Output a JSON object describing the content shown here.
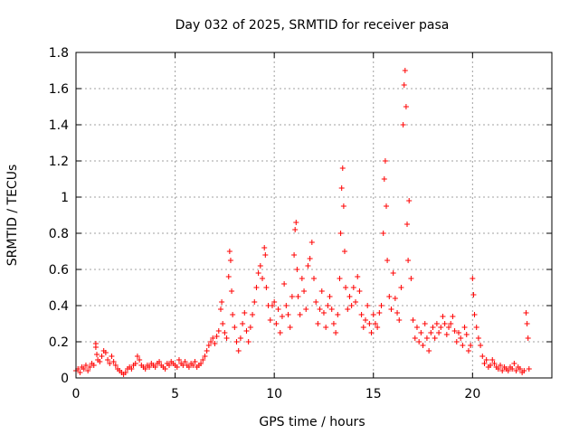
{
  "chart_data": {
    "type": "scatter",
    "title": "Day 032 of 2025, SRMTID for receiver pasa",
    "xlabel": "GPS time / hours",
    "ylabel": "SRMTID / TECUs",
    "xlim": [
      0,
      24
    ],
    "ylim": [
      0,
      1.8
    ],
    "xticks": [
      0,
      5,
      10,
      15,
      20
    ],
    "yticks": [
      0,
      0.2,
      0.4,
      0.6,
      0.8,
      1,
      1.2,
      1.4,
      1.6,
      1.8
    ],
    "xtick_labels": [
      "0",
      "5",
      "10",
      "15",
      "20"
    ],
    "ytick_labels": [
      "0",
      "0.2",
      "0.4",
      "0.6",
      "0.8",
      "1",
      "1.2",
      "1.4",
      "1.6",
      "1.8"
    ],
    "grid": true,
    "marker": "plus",
    "color": "#ff0000",
    "series": [
      {
        "name": "SRMTID",
        "points": [
          [
            0.0,
            0.04
          ],
          [
            0.1,
            0.05
          ],
          [
            0.2,
            0.03
          ],
          [
            0.3,
            0.06
          ],
          [
            0.4,
            0.05
          ],
          [
            0.5,
            0.07
          ],
          [
            0.6,
            0.04
          ],
          [
            0.7,
            0.06
          ],
          [
            0.8,
            0.08
          ],
          [
            0.9,
            0.07
          ],
          [
            1.0,
            0.19
          ],
          [
            1.0,
            0.17
          ],
          [
            1.05,
            0.13
          ],
          [
            1.1,
            0.1
          ],
          [
            1.2,
            0.09
          ],
          [
            1.3,
            0.12
          ],
          [
            1.4,
            0.15
          ],
          [
            1.5,
            0.14
          ],
          [
            1.6,
            0.1
          ],
          [
            1.7,
            0.08
          ],
          [
            1.8,
            0.12
          ],
          [
            1.9,
            0.09
          ],
          [
            2.0,
            0.07
          ],
          [
            2.1,
            0.05
          ],
          [
            2.2,
            0.04
          ],
          [
            2.3,
            0.03
          ],
          [
            2.4,
            0.02
          ],
          [
            2.5,
            0.03
          ],
          [
            2.6,
            0.05
          ],
          [
            2.7,
            0.06
          ],
          [
            2.8,
            0.05
          ],
          [
            2.9,
            0.07
          ],
          [
            3.0,
            0.08
          ],
          [
            3.1,
            0.12
          ],
          [
            3.2,
            0.1
          ],
          [
            3.3,
            0.07
          ],
          [
            3.4,
            0.06
          ],
          [
            3.5,
            0.05
          ],
          [
            3.6,
            0.07
          ],
          [
            3.7,
            0.06
          ],
          [
            3.8,
            0.08
          ],
          [
            3.9,
            0.07
          ],
          [
            4.0,
            0.06
          ],
          [
            4.1,
            0.08
          ],
          [
            4.2,
            0.09
          ],
          [
            4.3,
            0.07
          ],
          [
            4.4,
            0.06
          ],
          [
            4.5,
            0.05
          ],
          [
            4.6,
            0.08
          ],
          [
            4.7,
            0.07
          ],
          [
            4.8,
            0.09
          ],
          [
            4.9,
            0.08
          ],
          [
            5.0,
            0.07
          ],
          [
            5.1,
            0.06
          ],
          [
            5.2,
            0.1
          ],
          [
            5.3,
            0.08
          ],
          [
            5.4,
            0.07
          ],
          [
            5.5,
            0.09
          ],
          [
            5.6,
            0.07
          ],
          [
            5.7,
            0.06
          ],
          [
            5.8,
            0.08
          ],
          [
            5.9,
            0.07
          ],
          [
            6.0,
            0.09
          ],
          [
            6.1,
            0.06
          ],
          [
            6.2,
            0.07
          ],
          [
            6.3,
            0.08
          ],
          [
            6.4,
            0.1
          ],
          [
            6.5,
            0.12
          ],
          [
            6.6,
            0.15
          ],
          [
            6.7,
            0.18
          ],
          [
            6.8,
            0.2
          ],
          [
            6.9,
            0.22
          ],
          [
            7.0,
            0.19
          ],
          [
            7.1,
            0.23
          ],
          [
            7.2,
            0.26
          ],
          [
            7.3,
            0.38
          ],
          [
            7.35,
            0.42
          ],
          [
            7.4,
            0.3
          ],
          [
            7.5,
            0.25
          ],
          [
            7.6,
            0.22
          ],
          [
            7.7,
            0.56
          ],
          [
            7.75,
            0.7
          ],
          [
            7.8,
            0.65
          ],
          [
            7.85,
            0.48
          ],
          [
            7.9,
            0.35
          ],
          [
            8.0,
            0.28
          ],
          [
            8.1,
            0.2
          ],
          [
            8.2,
            0.15
          ],
          [
            8.3,
            0.22
          ],
          [
            8.4,
            0.3
          ],
          [
            8.5,
            0.36
          ],
          [
            8.6,
            0.26
          ],
          [
            8.7,
            0.2
          ],
          [
            8.8,
            0.28
          ],
          [
            8.9,
            0.35
          ],
          [
            9.0,
            0.42
          ],
          [
            9.1,
            0.5
          ],
          [
            9.2,
            0.58
          ],
          [
            9.3,
            0.62
          ],
          [
            9.4,
            0.55
          ],
          [
            9.5,
            0.72
          ],
          [
            9.55,
            0.68
          ],
          [
            9.6,
            0.5
          ],
          [
            9.7,
            0.4
          ],
          [
            9.8,
            0.32
          ],
          [
            9.9,
            0.4
          ],
          [
            10.0,
            0.42
          ],
          [
            10.1,
            0.3
          ],
          [
            10.2,
            0.38
          ],
          [
            10.3,
            0.25
          ],
          [
            10.4,
            0.34
          ],
          [
            10.5,
            0.52
          ],
          [
            10.6,
            0.4
          ],
          [
            10.7,
            0.35
          ],
          [
            10.8,
            0.28
          ],
          [
            10.9,
            0.45
          ],
          [
            11.0,
            0.68
          ],
          [
            11.05,
            0.82
          ],
          [
            11.1,
            0.86
          ],
          [
            11.15,
            0.6
          ],
          [
            11.2,
            0.45
          ],
          [
            11.3,
            0.35
          ],
          [
            11.4,
            0.55
          ],
          [
            11.5,
            0.48
          ],
          [
            11.6,
            0.38
          ],
          [
            11.7,
            0.62
          ],
          [
            11.8,
            0.66
          ],
          [
            11.9,
            0.75
          ],
          [
            12.0,
            0.55
          ],
          [
            12.1,
            0.42
          ],
          [
            12.2,
            0.3
          ],
          [
            12.3,
            0.38
          ],
          [
            12.4,
            0.48
          ],
          [
            12.5,
            0.36
          ],
          [
            12.6,
            0.28
          ],
          [
            12.7,
            0.4
          ],
          [
            12.8,
            0.45
          ],
          [
            12.9,
            0.38
          ],
          [
            13.0,
            0.3
          ],
          [
            13.1,
            0.25
          ],
          [
            13.2,
            0.35
          ],
          [
            13.3,
            0.55
          ],
          [
            13.35,
            0.8
          ],
          [
            13.4,
            1.05
          ],
          [
            13.45,
            1.16
          ],
          [
            13.5,
            0.95
          ],
          [
            13.55,
            0.7
          ],
          [
            13.6,
            0.5
          ],
          [
            13.7,
            0.38
          ],
          [
            13.8,
            0.45
          ],
          [
            13.9,
            0.4
          ],
          [
            14.0,
            0.5
          ],
          [
            14.1,
            0.42
          ],
          [
            14.2,
            0.56
          ],
          [
            14.3,
            0.48
          ],
          [
            14.4,
            0.35
          ],
          [
            14.5,
            0.28
          ],
          [
            14.6,
            0.32
          ],
          [
            14.7,
            0.4
          ],
          [
            14.8,
            0.3
          ],
          [
            14.9,
            0.25
          ],
          [
            15.0,
            0.35
          ],
          [
            15.1,
            0.3
          ],
          [
            15.2,
            0.28
          ],
          [
            15.3,
            0.36
          ],
          [
            15.4,
            0.4
          ],
          [
            15.5,
            0.8
          ],
          [
            15.55,
            1.1
          ],
          [
            15.6,
            1.2
          ],
          [
            15.65,
            0.95
          ],
          [
            15.7,
            0.65
          ],
          [
            15.8,
            0.45
          ],
          [
            15.9,
            0.38
          ],
          [
            16.0,
            0.58
          ],
          [
            16.1,
            0.44
          ],
          [
            16.2,
            0.36
          ],
          [
            16.3,
            0.32
          ],
          [
            16.4,
            0.5
          ],
          [
            16.5,
            1.4
          ],
          [
            16.55,
            1.62
          ],
          [
            16.6,
            1.7
          ],
          [
            16.65,
            1.5
          ],
          [
            16.7,
            0.85
          ],
          [
            16.75,
            0.65
          ],
          [
            16.8,
            0.98
          ],
          [
            16.9,
            0.55
          ],
          [
            17.0,
            0.32
          ],
          [
            17.1,
            0.22
          ],
          [
            17.2,
            0.28
          ],
          [
            17.3,
            0.2
          ],
          [
            17.4,
            0.25
          ],
          [
            17.5,
            0.18
          ],
          [
            17.6,
            0.3
          ],
          [
            17.7,
            0.22
          ],
          [
            17.8,
            0.15
          ],
          [
            17.9,
            0.25
          ],
          [
            18.0,
            0.28
          ],
          [
            18.1,
            0.22
          ],
          [
            18.2,
            0.3
          ],
          [
            18.3,
            0.25
          ],
          [
            18.4,
            0.28
          ],
          [
            18.5,
            0.34
          ],
          [
            18.6,
            0.3
          ],
          [
            18.7,
            0.24
          ],
          [
            18.8,
            0.28
          ],
          [
            18.9,
            0.3
          ],
          [
            19.0,
            0.34
          ],
          [
            19.1,
            0.26
          ],
          [
            19.2,
            0.2
          ],
          [
            19.3,
            0.25
          ],
          [
            19.4,
            0.22
          ],
          [
            19.5,
            0.18
          ],
          [
            19.6,
            0.28
          ],
          [
            19.7,
            0.24
          ],
          [
            19.8,
            0.15
          ],
          [
            19.9,
            0.18
          ],
          [
            20.0,
            0.55
          ],
          [
            20.05,
            0.46
          ],
          [
            20.1,
            0.35
          ],
          [
            20.2,
            0.28
          ],
          [
            20.3,
            0.22
          ],
          [
            20.4,
            0.18
          ],
          [
            20.5,
            0.12
          ],
          [
            20.6,
            0.08
          ],
          [
            20.7,
            0.1
          ],
          [
            20.8,
            0.06
          ],
          [
            20.9,
            0.07
          ],
          [
            21.0,
            0.1
          ],
          [
            21.1,
            0.08
          ],
          [
            21.2,
            0.06
          ],
          [
            21.3,
            0.05
          ],
          [
            21.4,
            0.07
          ],
          [
            21.5,
            0.04
          ],
          [
            21.6,
            0.06
          ],
          [
            21.7,
            0.05
          ],
          [
            21.8,
            0.04
          ],
          [
            21.9,
            0.06
          ],
          [
            22.0,
            0.05
          ],
          [
            22.1,
            0.08
          ],
          [
            22.2,
            0.04
          ],
          [
            22.3,
            0.06
          ],
          [
            22.4,
            0.05
          ],
          [
            22.5,
            0.03
          ],
          [
            22.6,
            0.04
          ],
          [
            22.7,
            0.36
          ],
          [
            22.75,
            0.3
          ],
          [
            22.8,
            0.22
          ],
          [
            22.85,
            0.05
          ]
        ]
      }
    ]
  }
}
